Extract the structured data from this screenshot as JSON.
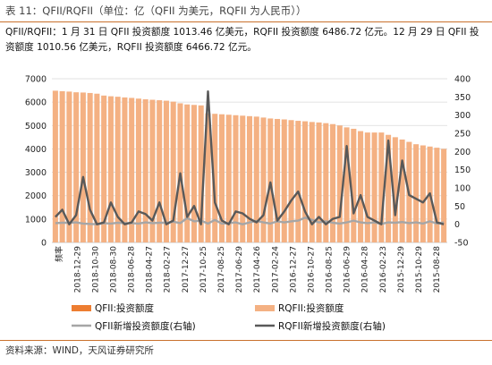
{
  "header": {
    "caption": "表 11：QFII/RQFII（单位：亿（QFII 为美元，RQFII 为人民币））",
    "summary": "QFII/RQFII：1 月 31 日 QFII 投资额度 1013.46 亿美元，RQFII 投资额度 6486.72 亿元。12 月 29 日 QFII 投资额度 1010.56 亿美元，RQFII 投资额度 6466.72 亿元。",
    "source": "资料来源：WIND，天风证券研究所"
  },
  "colors": {
    "rqfii_bar": "#F4B183",
    "qfii_bar": "#ED7D31",
    "qfii_new_line": "#A6A6A6",
    "rqfii_new_line": "#595959",
    "rule": "#C9712D"
  },
  "chart_data": {
    "type": "bar",
    "left_axis": {
      "min": 0,
      "max": 7000,
      "step": 1000,
      "ticks": [
        "0",
        "1000",
        "2000",
        "3000",
        "4000",
        "5000",
        "6000",
        "7000"
      ]
    },
    "right_axis": {
      "min": -50,
      "max": 400,
      "step": 50,
      "ticks": [
        "-50",
        "0",
        "50",
        "100",
        "150",
        "200",
        "250",
        "300",
        "350",
        "400"
      ]
    },
    "x_labels": [
      "频率",
      "2018-12-29",
      "2018-10-30",
      "2018-08-30",
      "2018-06-28",
      "2018-04-27",
      "2018-02-27",
      "2017-12-27",
      "2017-10-25",
      "2017-08-25",
      "2017-06-29",
      "2017-04-26",
      "2017-02-24",
      "2016-12-27",
      "2016-10-27",
      "2016-08-25",
      "2016-06-29",
      "2016-04-28",
      "2016-02-23",
      "2015-12-29",
      "2015-10-29",
      "2015-08-28"
    ],
    "series": [
      {
        "name": "QFII:投资额度",
        "kind": "bar",
        "axis": "left",
        "values": [],
        "color": "#ED7D31"
      },
      {
        "name": "RQFII:投资额度",
        "kind": "bar",
        "axis": "left",
        "color": "#F4B183",
        "values": [
          6487,
          6467,
          6450,
          6420,
          6410,
          6390,
          6360,
          6280,
          6250,
          6230,
          6200,
          6180,
          6150,
          6120,
          6100,
          6080,
          6060,
          6020,
          5950,
          5900,
          5880,
          5860,
          5520,
          5500,
          5480,
          5460,
          5440,
          5420,
          5400,
          5380,
          5340,
          5300,
          5280,
          5260,
          5230,
          5200,
          5180,
          5150,
          5130,
          5100,
          5060,
          5000,
          4920,
          4860,
          4760,
          4700,
          4700,
          4700,
          4600,
          4500,
          4400,
          4300,
          4200,
          4150,
          4100,
          4050,
          4000
        ]
      },
      {
        "name": "QFII新增投资额度(右轴)",
        "kind": "line",
        "axis": "right",
        "color": "#A6A6A6",
        "values": [
          3,
          4,
          4,
          5,
          2,
          1,
          0,
          3,
          2,
          4,
          3,
          3,
          2,
          5,
          3,
          4,
          4,
          7,
          3,
          17,
          8,
          10,
          2,
          12,
          2,
          3,
          5,
          0,
          5,
          9,
          5,
          2,
          8,
          5,
          8,
          10,
          18,
          12,
          5,
          8,
          4,
          2,
          5,
          10,
          5,
          3,
          5,
          1,
          5,
          4,
          6,
          3,
          5,
          2,
          8,
          2,
          5
        ]
      },
      {
        "name": "RQFII新增投资额度(右轴)",
        "kind": "line",
        "axis": "right",
        "color": "#595959",
        "values": [
          20,
          40,
          0,
          25,
          130,
          40,
          0,
          5,
          60,
          20,
          0,
          5,
          35,
          28,
          10,
          60,
          0,
          10,
          140,
          20,
          50,
          0,
          365,
          60,
          10,
          0,
          35,
          30,
          15,
          5,
          25,
          115,
          10,
          35,
          65,
          90,
          35,
          0,
          20,
          0,
          15,
          20,
          215,
          30,
          80,
          20,
          10,
          0,
          230,
          25,
          175,
          80,
          70,
          60,
          85,
          5,
          0
        ]
      }
    ],
    "legend": {
      "placement": "bottom"
    }
  }
}
